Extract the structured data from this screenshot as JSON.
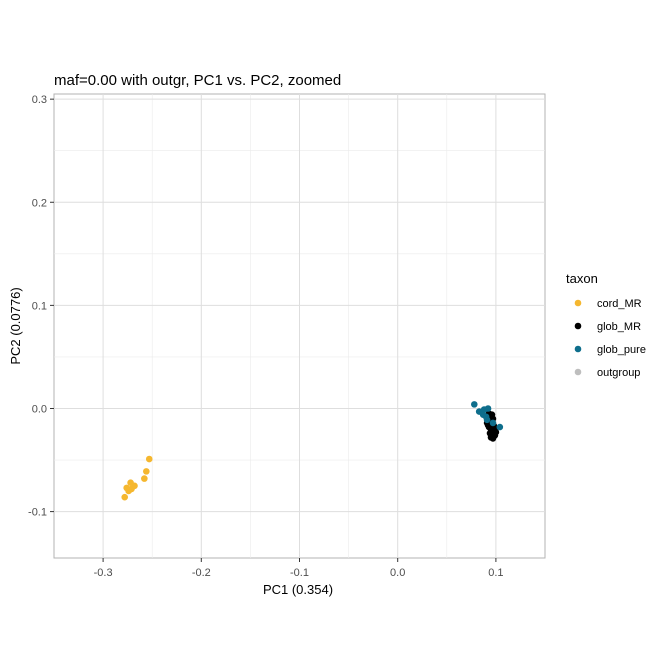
{
  "chart_data": {
    "type": "scatter",
    "title": "maf=0.00 with outgr, PC1 vs. PC2, zoomed",
    "xlabel": "PC1 (0.354)",
    "ylabel": "PC2 (0.0776)",
    "xlim": [
      -0.35,
      0.15
    ],
    "ylim": [
      -0.145,
      0.305
    ],
    "xticks": [
      -0.3,
      -0.2,
      -0.1,
      0.0,
      0.1
    ],
    "xtick_labels": [
      "-0.3",
      "-0.2",
      "-0.1",
      "0.0",
      "0.1"
    ],
    "yticks": [
      -0.1,
      0.0,
      0.1,
      0.2,
      0.3
    ],
    "ytick_labels": [
      "-0.1",
      "0.0",
      "0.1",
      "0.2",
      "0.3"
    ],
    "grid": true,
    "legend": {
      "title": "taxon",
      "position": "right",
      "entries": [
        "cord_MR",
        "glob_MR",
        "glob_pure",
        "outgroup"
      ]
    },
    "series": [
      {
        "name": "cord_MR",
        "color": "#F5B72F",
        "points": [
          [
            -0.253,
            -0.049
          ],
          [
            -0.256,
            -0.061
          ],
          [
            -0.258,
            -0.068
          ],
          [
            -0.268,
            -0.075
          ],
          [
            -0.272,
            -0.072
          ],
          [
            -0.271,
            -0.078
          ],
          [
            -0.274,
            -0.08
          ],
          [
            -0.276,
            -0.077
          ],
          [
            -0.278,
            -0.086
          ]
        ]
      },
      {
        "name": "glob_MR",
        "color": "#000000",
        "points": [
          [
            0.093,
            -0.005
          ],
          [
            0.095,
            -0.008
          ],
          [
            0.097,
            -0.01
          ],
          [
            0.092,
            -0.012
          ],
          [
            0.094,
            -0.013
          ],
          [
            0.096,
            -0.015
          ],
          [
            0.098,
            -0.017
          ],
          [
            0.093,
            -0.018
          ],
          [
            0.095,
            -0.02
          ],
          [
            0.097,
            -0.022
          ],
          [
            0.094,
            -0.024
          ],
          [
            0.096,
            -0.025
          ],
          [
            0.098,
            -0.027
          ],
          [
            0.095,
            -0.028
          ],
          [
            0.097,
            -0.029
          ],
          [
            0.099,
            -0.026
          ],
          [
            0.092,
            -0.016
          ],
          [
            0.091,
            -0.014
          ],
          [
            0.099,
            -0.019
          ],
          [
            0.1,
            -0.023
          ],
          [
            0.096,
            -0.006
          ],
          [
            0.094,
            -0.009
          ]
        ]
      },
      {
        "name": "glob_pure",
        "color": "#0E6E8C",
        "points": [
          [
            0.078,
            0.004
          ],
          [
            0.083,
            -0.003
          ],
          [
            0.088,
            -0.001
          ],
          [
            0.092,
            0.0
          ],
          [
            0.087,
            -0.006
          ],
          [
            0.09,
            -0.008
          ],
          [
            0.104,
            -0.018
          ],
          [
            0.097,
            -0.014
          ],
          [
            0.091,
            -0.011
          ]
        ]
      },
      {
        "name": "outgroup",
        "color": "#BEBEBE",
        "points": []
      }
    ]
  }
}
